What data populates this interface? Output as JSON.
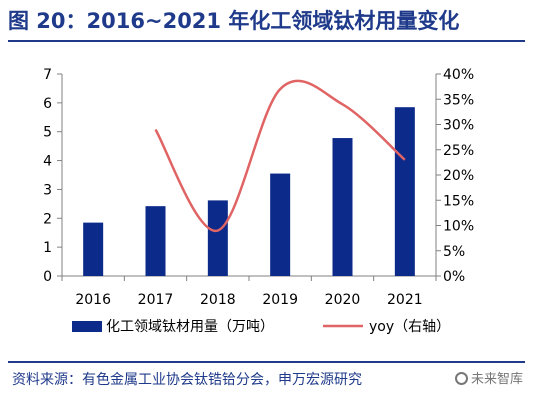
{
  "header": {
    "title": "图 20：2016~2021 年化工领域钛材用量变化"
  },
  "footer": {
    "source": "资料来源：有色金属工业协会钛锆铪分会，申万宏源研究",
    "watermark": "未来智库"
  },
  "colors": {
    "title": "#1f3a8a",
    "bar": "#0b2a8a",
    "line": "#e06464",
    "axis": "#808080"
  },
  "chart_data": {
    "type": "bar",
    "categories": [
      "2016",
      "2017",
      "2018",
      "2019",
      "2020",
      "2021"
    ],
    "series": [
      {
        "name": "化工领域钛材用量（万吨）",
        "type": "bar",
        "axis": "left",
        "values": [
          1.85,
          2.42,
          2.62,
          3.55,
          4.78,
          5.85
        ]
      },
      {
        "name": "yoy（右轴）",
        "type": "line",
        "axis": "right",
        "values": [
          null,
          0.29,
          0.09,
          0.37,
          0.34,
          0.23
        ]
      }
    ],
    "y_left": {
      "min": 0,
      "max": 7,
      "ticks": [
        "0",
        "1",
        "2",
        "3",
        "4",
        "5",
        "6",
        "7"
      ]
    },
    "y_right": {
      "min": 0,
      "max": 0.4,
      "ticks": [
        "0%",
        "5%",
        "10%",
        "15%",
        "20%",
        "25%",
        "30%",
        "35%",
        "40%"
      ]
    },
    "legend_position": "bottom",
    "grid": false
  }
}
